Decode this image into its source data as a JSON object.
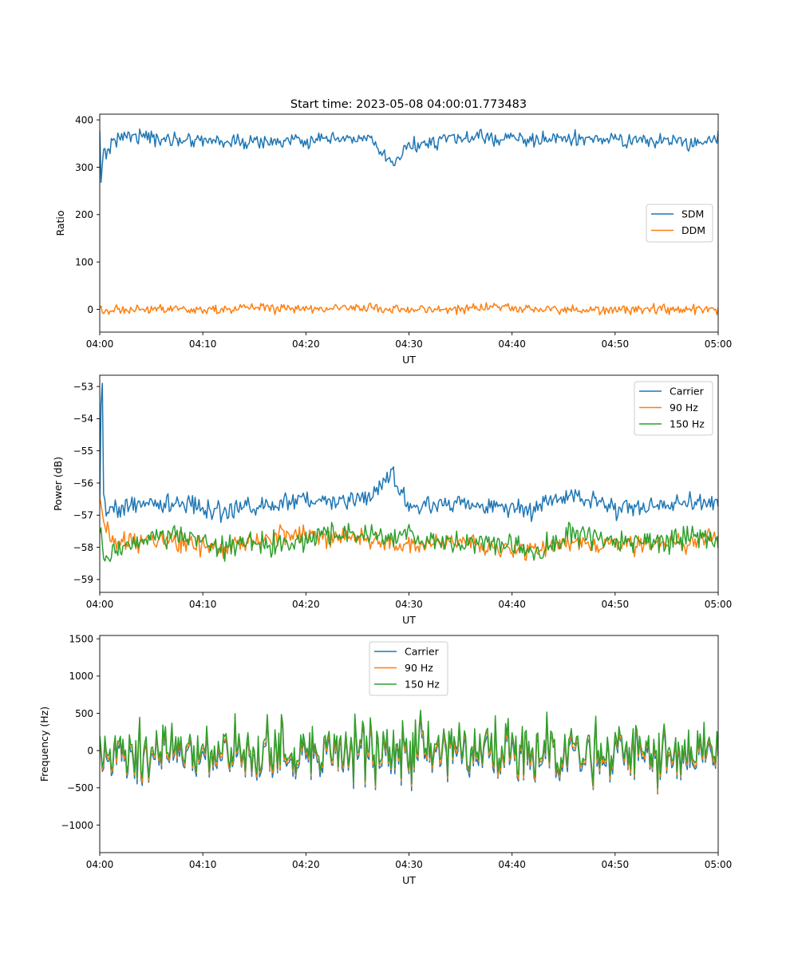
{
  "figure": {
    "title": "Start time: 2023-05-08 04:00:01.773483"
  },
  "colors": {
    "blue": "#1f77b4",
    "orange": "#ff7f0e",
    "green": "#2ca02c"
  },
  "chart_data": [
    {
      "type": "line",
      "title": "Start time: 2023-05-08 04:00:01.773483",
      "xlabel": "UT",
      "ylabel": "Ratio",
      "xlim": [
        "04:00",
        "05:00"
      ],
      "xticks": [
        "04:00",
        "04:10",
        "04:20",
        "04:30",
        "04:40",
        "04:50",
        "05:00"
      ],
      "ylim": [
        -48,
        412
      ],
      "yticks": [
        0,
        100,
        200,
        300,
        400
      ],
      "ytick_labels": [
        "0",
        "100",
        "200",
        "300",
        "400"
      ],
      "grid": false,
      "legend": "center-right",
      "x_minutes": [
        0,
        0.15,
        0.3,
        0.6,
        1.5,
        3,
        6,
        9,
        12,
        14,
        18,
        22,
        26,
        28.3,
        30,
        34,
        38,
        42,
        46,
        50,
        54,
        58,
        60
      ],
      "series": [
        {
          "name": "SDM",
          "color": "#1f77b4",
          "values": [
            365,
            252,
            340,
            330,
            360,
            370,
            358,
            360,
            355,
            352,
            355,
            356,
            362,
            305,
            345,
            360,
            362,
            358,
            360,
            358,
            355,
            352,
            362
          ],
          "noise": 14
        },
        {
          "name": "DDM",
          "color": "#ff7f0e",
          "values": [
            0,
            -5,
            -10,
            -5,
            0,
            0,
            0,
            0,
            -3,
            5,
            0,
            0,
            5,
            -3,
            0,
            0,
            5,
            0,
            0,
            0,
            0,
            0,
            0
          ],
          "noise": 9
        }
      ]
    },
    {
      "type": "line",
      "title": "",
      "xlabel": "UT",
      "ylabel": "Power (dB)",
      "xlim": [
        "04:00",
        "05:00"
      ],
      "xticks": [
        "04:00",
        "04:10",
        "04:20",
        "04:30",
        "04:40",
        "04:50",
        "05:00"
      ],
      "ylim": [
        -59.4,
        -52.65
      ],
      "yticks": [
        -59,
        -58,
        -57,
        -56,
        -55,
        -54,
        -53
      ],
      "ytick_labels": [
        "−59",
        "−58",
        "−57",
        "−56",
        "−55",
        "−54",
        "−53"
      ],
      "grid": false,
      "legend": "top-right",
      "x_minutes": [
        0,
        0.15,
        0.3,
        0.6,
        1.5,
        3,
        6,
        9,
        12,
        14,
        18,
        22,
        26,
        28.3,
        30,
        34,
        38,
        42,
        46,
        50,
        54,
        58,
        60
      ],
      "series": [
        {
          "name": "Carrier",
          "color": "#1f77b4",
          "values": [
            -56.5,
            -52.9,
            -56.3,
            -56.9,
            -56.8,
            -56.7,
            -56.6,
            -56.7,
            -56.9,
            -56.8,
            -56.6,
            -56.5,
            -56.5,
            -55.6,
            -56.8,
            -56.6,
            -56.7,
            -56.8,
            -56.4,
            -56.8,
            -56.7,
            -56.6,
            -56.7
          ],
          "noise": 0.28
        },
        {
          "name": "90 Hz",
          "color": "#ff7f0e",
          "values": [
            -56.4,
            -56.8,
            -57.2,
            -57.6,
            -57.8,
            -57.8,
            -57.7,
            -57.9,
            -58.1,
            -57.8,
            -57.6,
            -57.7,
            -57.8,
            -57.9,
            -57.9,
            -57.8,
            -58.0,
            -58.0,
            -57.9,
            -57.9,
            -57.9,
            -57.8,
            -57.6
          ],
          "noise": 0.3
        },
        {
          "name": "150 Hz",
          "color": "#2ca02c",
          "values": [
            -57.5,
            -57.8,
            -58.2,
            -58.4,
            -58.0,
            -57.8,
            -57.6,
            -57.7,
            -58.0,
            -57.8,
            -57.9,
            -57.6,
            -57.6,
            -57.8,
            -57.6,
            -57.9,
            -57.8,
            -58.2,
            -57.6,
            -57.8,
            -57.9,
            -57.6,
            -57.8
          ],
          "noise": 0.33
        }
      ]
    },
    {
      "type": "line",
      "title": "",
      "xlabel": "UT",
      "ylabel": "Frequency (Hz)",
      "xlim": [
        "04:00",
        "05:00"
      ],
      "xticks": [
        "04:00",
        "04:10",
        "04:20",
        "04:30",
        "04:40",
        "04:50",
        "05:00"
      ],
      "ylim": [
        -1370,
        1545
      ],
      "yticks": [
        -1000,
        -500,
        0,
        500,
        1000,
        1500
      ],
      "ytick_labels": [
        "−1000",
        "−500",
        "0",
        "500",
        "1000",
        "1500"
      ],
      "grid": false,
      "legend": "upper-center",
      "x_minutes": [
        0,
        0.15,
        0.3,
        0.6,
        1.5,
        3,
        6,
        9,
        12,
        14,
        18,
        22,
        26,
        28.3,
        30,
        34,
        38,
        42,
        46,
        50,
        54,
        58,
        60
      ],
      "series": [
        {
          "name": "Carrier",
          "color": "#1f77b4",
          "values": [
            -50,
            -60,
            -40,
            -60,
            -60,
            -60,
            -60,
            -60,
            -60,
            -60,
            -60,
            -60,
            -60,
            -60,
            -60,
            -60,
            -60,
            -60,
            -60,
            -60,
            -60,
            -60,
            -60
          ],
          "noise": 330
        },
        {
          "name": "90 Hz",
          "color": "#ff7f0e",
          "values": [
            -10,
            -20,
            0,
            -20,
            -20,
            -20,
            -20,
            -20,
            -20,
            -20,
            -20,
            -20,
            -20,
            -20,
            -20,
            -20,
            -20,
            -20,
            -20,
            -20,
            -20,
            -20,
            -20
          ],
          "noise": 330
        },
        {
          "name": "150 Hz",
          "color": "#2ca02c",
          "values": [
            20,
            20,
            40,
            20,
            20,
            20,
            20,
            20,
            20,
            20,
            20,
            20,
            20,
            20,
            20,
            20,
            20,
            20,
            20,
            20,
            20,
            20,
            20
          ],
          "noise": 330
        }
      ]
    }
  ]
}
